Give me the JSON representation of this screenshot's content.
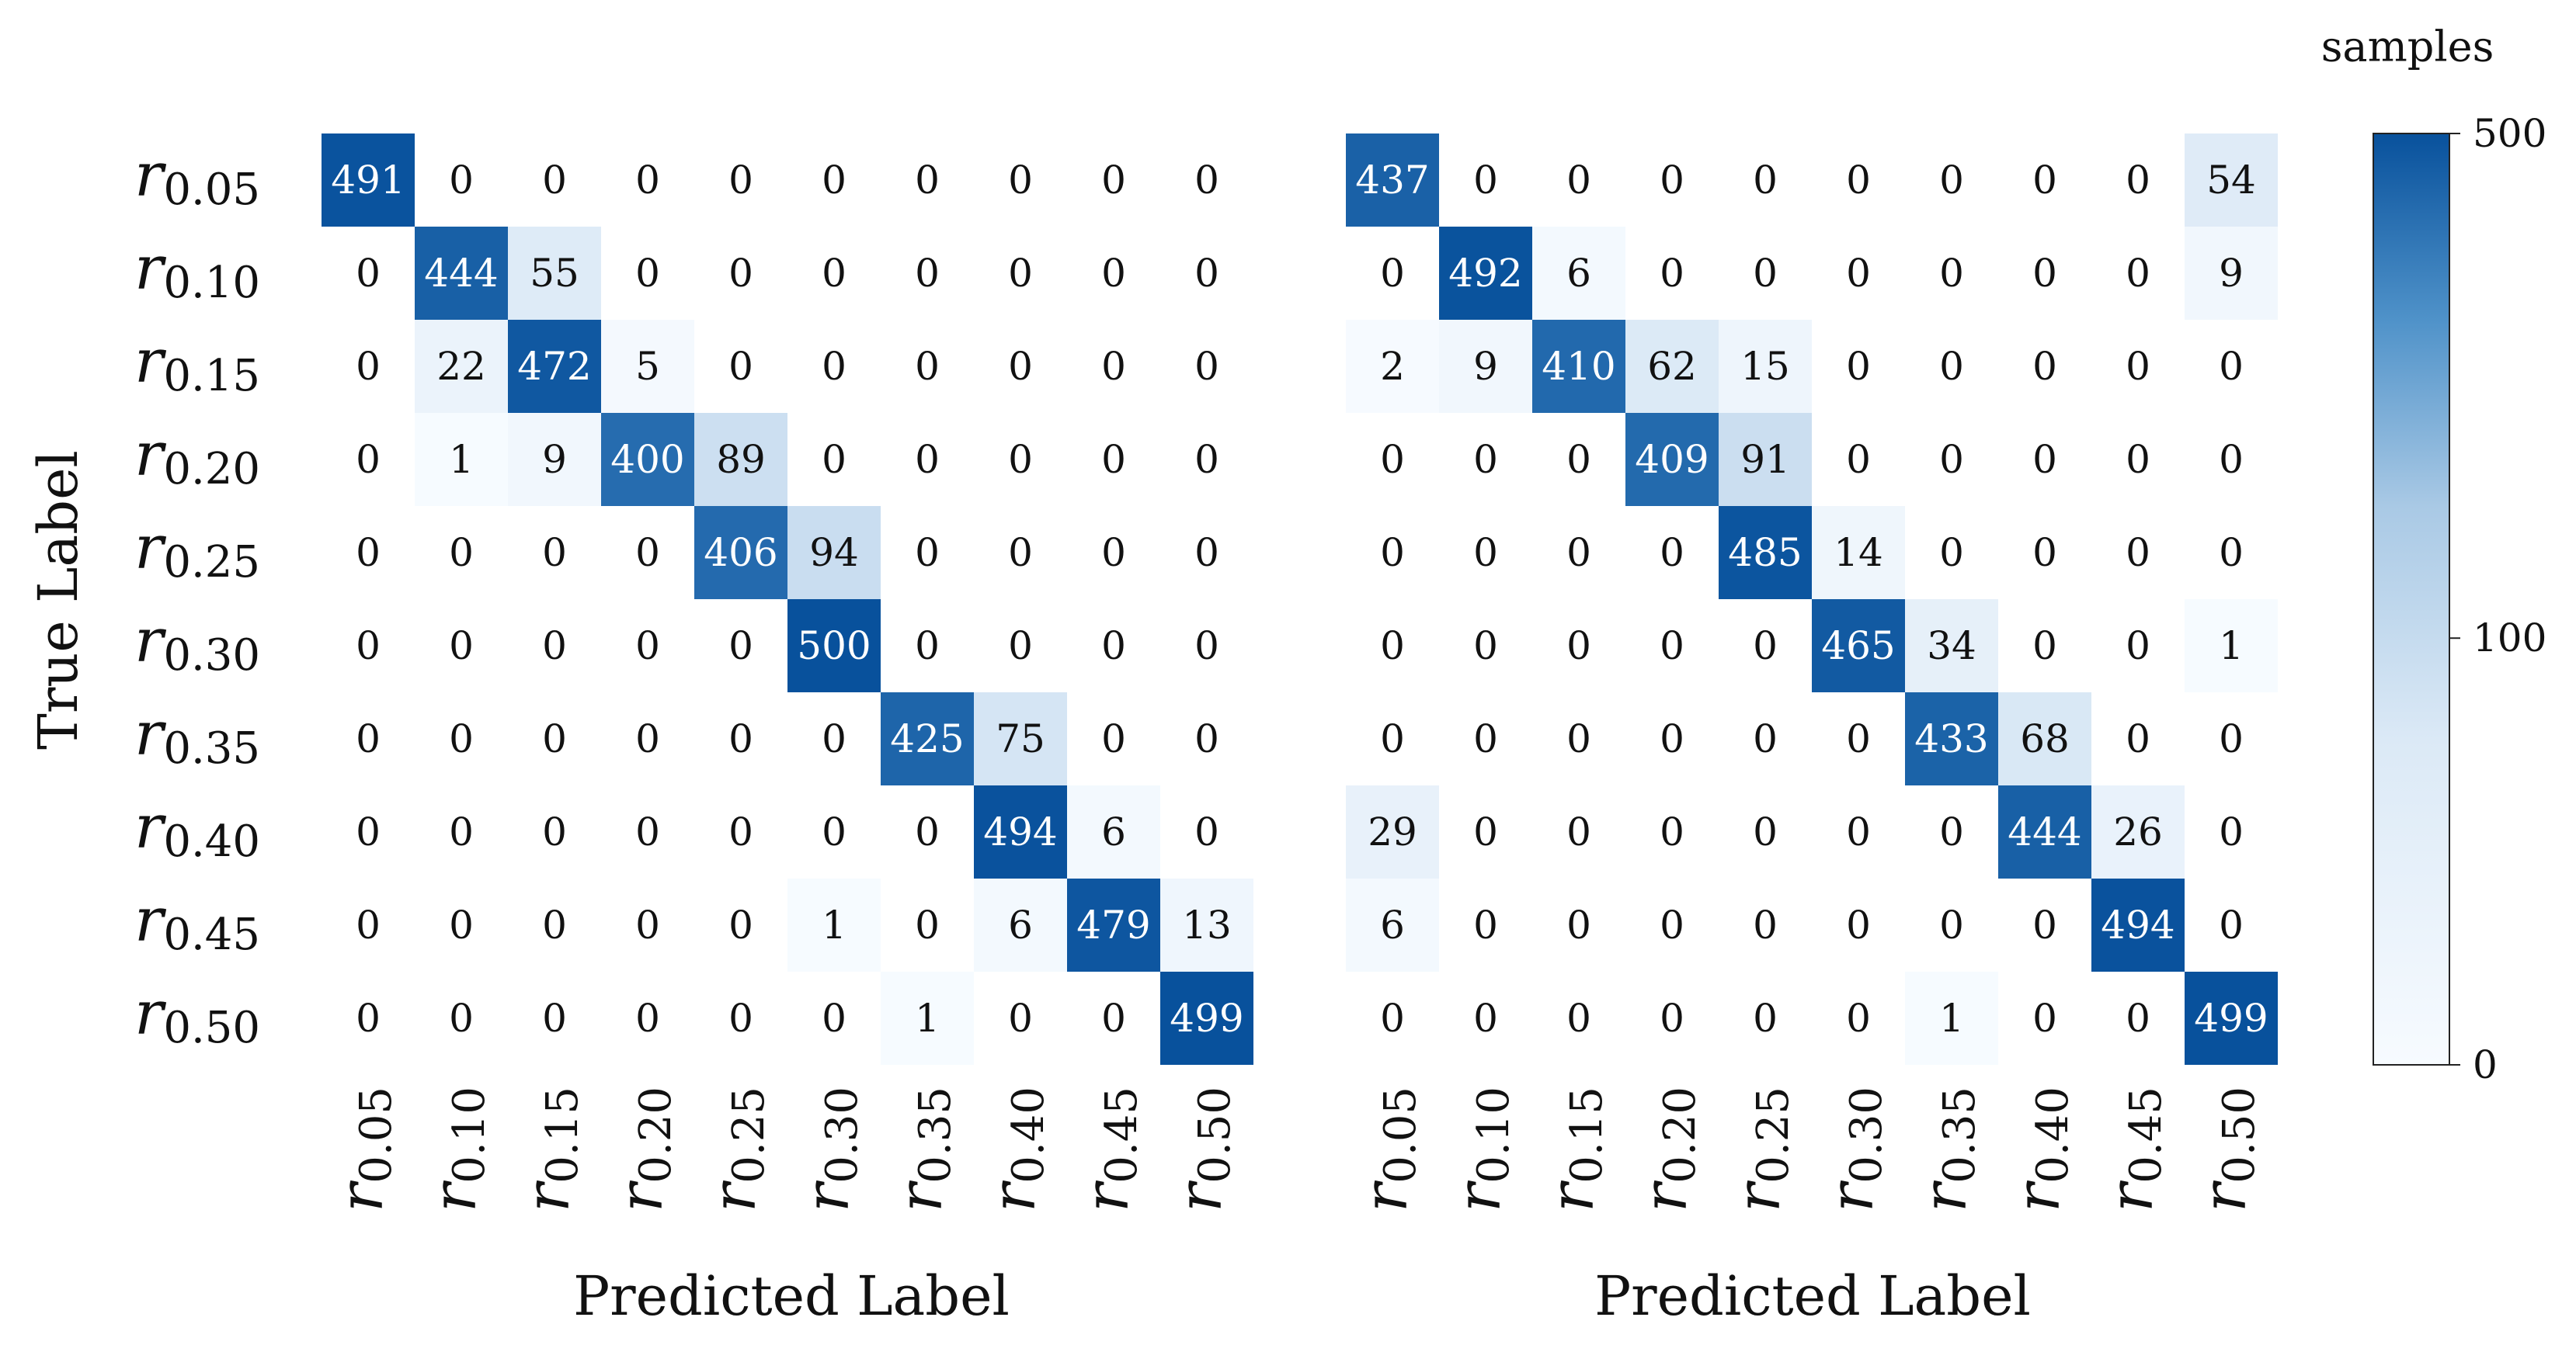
{
  "chart_data": [
    {
      "type": "heatmap",
      "xlabel": "Predicted Label",
      "ylabel": "True Label",
      "x_categories": [
        "r_{0.05}",
        "r_{0.10}",
        "r_{0.15}",
        "r_{0.20}",
        "r_{0.25}",
        "r_{0.30}",
        "r_{0.35}",
        "r_{0.40}",
        "r_{0.45}",
        "r_{0.50}"
      ],
      "y_categories": [
        "r_{0.05}",
        "r_{0.10}",
        "r_{0.15}",
        "r_{0.20}",
        "r_{0.25}",
        "r_{0.30}",
        "r_{0.35}",
        "r_{0.40}",
        "r_{0.45}",
        "r_{0.50}"
      ],
      "values": [
        [
          491,
          0,
          0,
          0,
          0,
          0,
          0,
          0,
          0,
          0
        ],
        [
          0,
          444,
          55,
          0,
          0,
          0,
          0,
          0,
          0,
          0
        ],
        [
          0,
          22,
          472,
          5,
          0,
          0,
          0,
          0,
          0,
          0
        ],
        [
          0,
          1,
          9,
          400,
          89,
          0,
          0,
          0,
          0,
          0
        ],
        [
          0,
          0,
          0,
          0,
          406,
          94,
          0,
          0,
          0,
          0
        ],
        [
          0,
          0,
          0,
          0,
          0,
          500,
          0,
          0,
          0,
          0
        ],
        [
          0,
          0,
          0,
          0,
          0,
          0,
          425,
          75,
          0,
          0
        ],
        [
          0,
          0,
          0,
          0,
          0,
          0,
          0,
          494,
          6,
          0
        ],
        [
          0,
          0,
          0,
          0,
          0,
          1,
          0,
          6,
          479,
          13
        ],
        [
          0,
          0,
          0,
          0,
          0,
          0,
          1,
          0,
          0,
          499
        ]
      ]
    },
    {
      "type": "heatmap",
      "xlabel": "Predicted Label",
      "ylabel": "",
      "x_categories": [
        "r_{0.05}",
        "r_{0.10}",
        "r_{0.15}",
        "r_{0.20}",
        "r_{0.25}",
        "r_{0.30}",
        "r_{0.35}",
        "r_{0.40}",
        "r_{0.45}",
        "r_{0.50}"
      ],
      "y_categories": [
        "r_{0.05}",
        "r_{0.10}",
        "r_{0.15}",
        "r_{0.20}",
        "r_{0.25}",
        "r_{0.30}",
        "r_{0.35}",
        "r_{0.40}",
        "r_{0.45}",
        "r_{0.50}"
      ],
      "values": [
        [
          437,
          0,
          0,
          0,
          0,
          0,
          0,
          0,
          0,
          54
        ],
        [
          0,
          492,
          6,
          0,
          0,
          0,
          0,
          0,
          0,
          9
        ],
        [
          2,
          9,
          410,
          62,
          15,
          0,
          0,
          0,
          0,
          0
        ],
        [
          0,
          0,
          0,
          409,
          91,
          0,
          0,
          0,
          0,
          0
        ],
        [
          0,
          0,
          0,
          0,
          485,
          14,
          0,
          0,
          0,
          0
        ],
        [
          0,
          0,
          0,
          0,
          0,
          465,
          34,
          0,
          0,
          1
        ],
        [
          0,
          0,
          0,
          0,
          0,
          0,
          433,
          68,
          0,
          0
        ],
        [
          29,
          0,
          0,
          0,
          0,
          0,
          0,
          444,
          26,
          0
        ],
        [
          6,
          0,
          0,
          0,
          0,
          0,
          0,
          0,
          494,
          0
        ],
        [
          0,
          0,
          0,
          0,
          0,
          0,
          1,
          0,
          0,
          499
        ]
      ]
    }
  ],
  "colorbar": {
    "title": "samples",
    "ticks": [
      {
        "value": 500,
        "label": "500"
      },
      {
        "value": 100,
        "label": "100"
      },
      {
        "value": 0,
        "label": "0"
      }
    ],
    "scale": "symlog",
    "range": [
      0,
      500
    ],
    "color_low": "#f7fbff",
    "color_mid": "#a9c9e5",
    "color_high": "#08519c"
  }
}
